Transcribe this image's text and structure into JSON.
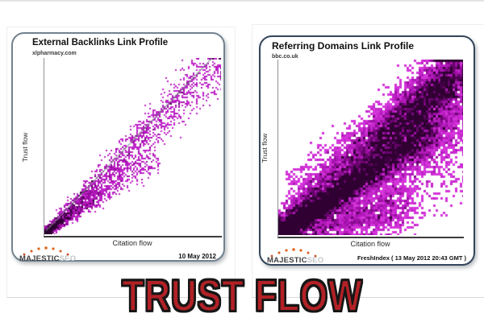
{
  "banner": {
    "text": "TRUST FLOW",
    "color": "#b22126"
  },
  "chart_data": [
    {
      "type": "scatter",
      "title": "External Backlinks Link Profile",
      "subtitle": "xlpharmacy.com",
      "xlabel": "Citation flow",
      "ylabel": "Trust flow",
      "brand": "MAJESTIC",
      "brand_suffix": "SEO",
      "footer_note": "10 May 2012",
      "description": "Dense magenta scatter of external backlinks, strongly correlated along the Citation flow = Trust flow diagonal; very dense dark cluster at low values near origin, widening sparse cone toward top right, with a grey trend line to the upper-right corner.",
      "xlim": [
        0,
        100
      ],
      "ylim": [
        0,
        100
      ],
      "grid": false,
      "point_color_low_density": "#bf24c8",
      "point_color_high_density": "#2a002e",
      "seed": 7,
      "cell_size": 2,
      "dot_size": 2,
      "density_colors": [
        "#bf24c8",
        "#ab14b4",
        "#8f0b98",
        "#6b0473",
        "#3f0144",
        "#2a002e"
      ],
      "trend_line": {
        "x1": 0.01,
        "y1": 0.02,
        "x2": 0.96,
        "y2": 1.01,
        "color": "rgba(125,132,138,0.85)",
        "width": 1.2
      },
      "components": [
        {
          "n": 1700,
          "tExp": 1.35,
          "x0": 0,
          "xs": 1.0,
          "xn0": 0.025,
          "xnT": 0.09,
          "y0": 0,
          "ys": 0.98,
          "yn0": 0.025,
          "ynT": 0.12
        },
        {
          "n": 70,
          "tExp": 1.0,
          "x0": 0.5,
          "xs": 0.46,
          "xn0": 0.012,
          "xnT": 0,
          "y0": 0.52,
          "ys": 0.49,
          "yn0": 0.012,
          "ynT": 0
        },
        {
          "n": 1100,
          "tExp": 2.2,
          "x0": 0,
          "xs": 0.6,
          "xn0": 0.02,
          "xnT": 0.05,
          "y0": 0,
          "ys": 0.42,
          "yn0": 0.02,
          "ynT": 0.06
        }
      ]
    },
    {
      "type": "scatter",
      "title": "Referring Domains Link Profile",
      "subtitle": "bbc.co.uk",
      "xlabel": "Citation flow",
      "ylabel": "Trust flow",
      "brand": "MAJESTIC",
      "brand_suffix": "SEO",
      "footer_note": "FreshIndex ( 13 May 2012 20:43 GMT )",
      "description": "Very dense pixelated density plot of referring domains: near-black purple core hugging the origin and lower-left, broad bright magenta wedge rising to the top-right corner, sparse speckle along the lower right edge.",
      "xlim": [
        0,
        100
      ],
      "ylim": [
        0,
        100
      ],
      "grid": false,
      "point_color_low_density": "#d435da",
      "point_color_high_density": "#2f0031",
      "seed": 13,
      "cell_size": 3,
      "dot_size": 3,
      "density_colors": [
        "#d435da",
        "#c526cc",
        "#b219ba",
        "#9c10a4",
        "#820a88",
        "#66046b",
        "#4a014e",
        "#2f0031"
      ],
      "trend_line": null,
      "components": [
        {
          "n": 7000,
          "tExp": 1.6,
          "x0": 0,
          "xs": 0.85,
          "xn0": 0.03,
          "xnT": 0.06,
          "y0": 0,
          "ys": 0.6,
          "yn0": 0.04,
          "ynT": 0.1
        },
        {
          "n": 6000,
          "tExp": 0.75,
          "x0": 0,
          "xs": 1.0,
          "xn0": 0.05,
          "xnT": 0.04,
          "y0": 0.06,
          "ys": 0.8,
          "yn0": 0.06,
          "ynT": 0.26
        },
        {
          "n": 2000,
          "tExp": 0.8,
          "x0": 0.5,
          "xs": 0.5,
          "xn0": 0.05,
          "xnT": 0.03,
          "y0": 0.5,
          "ys": 0.45,
          "yn0": 0.09,
          "ynT": 0.05
        },
        {
          "n": 500,
          "tExp": 0.7,
          "x0": 0.3,
          "xs": 0.7,
          "xn0": 0.08,
          "xnT": 0.05,
          "y0": 0,
          "ys": 0.45,
          "yn0": 0.1,
          "ynT": 0.12
        },
        {
          "n": 2000,
          "tExp": 1.2,
          "x0": 0,
          "xs": 0.7,
          "xn0": 0.04,
          "xnT": 0.06,
          "y0": 0.02,
          "ys": 0.15,
          "yn0": 0.06,
          "ynT": 0.1
        },
        {
          "n": 1200,
          "tExp": 0.7,
          "x0": 0.05,
          "xs": 0.9,
          "xn0": 0.05,
          "xnT": 0.04,
          "y0": 0.25,
          "ys": 0.65,
          "yn0": 0.12,
          "ynT": 0.05
        }
      ]
    }
  ]
}
